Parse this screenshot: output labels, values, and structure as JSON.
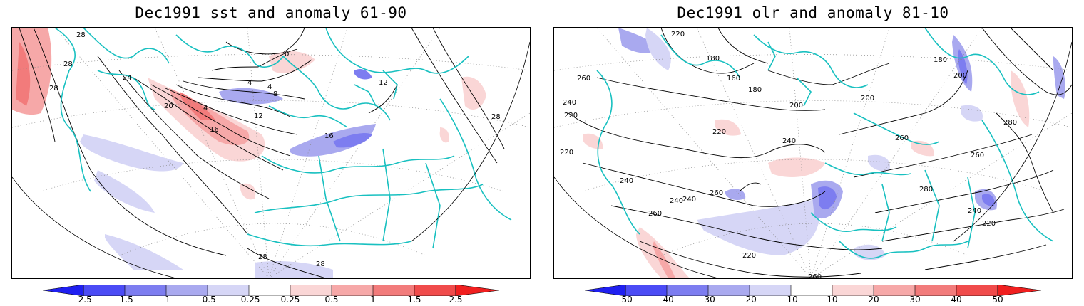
{
  "panels": [
    {
      "id": "sst",
      "title": "Dec1991 sst and anomaly 61-90",
      "contour_labels": [
        "28",
        "28",
        "28",
        "24",
        "20",
        "16",
        "12",
        "8",
        "4",
        "4",
        "4",
        "0",
        "16",
        "12",
        "28",
        "28",
        "28"
      ],
      "colorbar": {
        "labels": [
          "-2.5",
          "-1.5",
          "-1",
          "-0.5",
          "-0.25",
          "0.25",
          "0.5",
          "1",
          "1.5",
          "2.5"
        ],
        "colors": [
          "#1f1ff0",
          "#4b4bf5",
          "#7d7df0",
          "#a9a9ef",
          "#d6d6f6",
          "#ffffff",
          "#fad6d6",
          "#f6a8a8",
          "#f27b7b",
          "#f04b4b",
          "#f01f1f"
        ]
      }
    },
    {
      "id": "olr",
      "title": "Dec1991 olr and anomaly 81-10",
      "contour_labels": [
        "220",
        "180",
        "160",
        "180",
        "200",
        "260",
        "240",
        "220",
        "220",
        "240",
        "220",
        "240",
        "260",
        "280",
        "260",
        "240",
        "200",
        "260",
        "240",
        "220",
        "260",
        "240",
        "220",
        "260",
        "180",
        "200",
        "280"
      ],
      "colorbar": {
        "labels": [
          "-50",
          "-40",
          "-30",
          "-20",
          "-10",
          "10",
          "20",
          "30",
          "40",
          "50"
        ],
        "colors": [
          "#1f1ff0",
          "#4b4bf5",
          "#7d7df0",
          "#a9a9ef",
          "#d6d6f6",
          "#ffffff",
          "#fad6d6",
          "#f6a8a8",
          "#f27b7b",
          "#f04b4b",
          "#f01f1f"
        ]
      }
    }
  ]
}
